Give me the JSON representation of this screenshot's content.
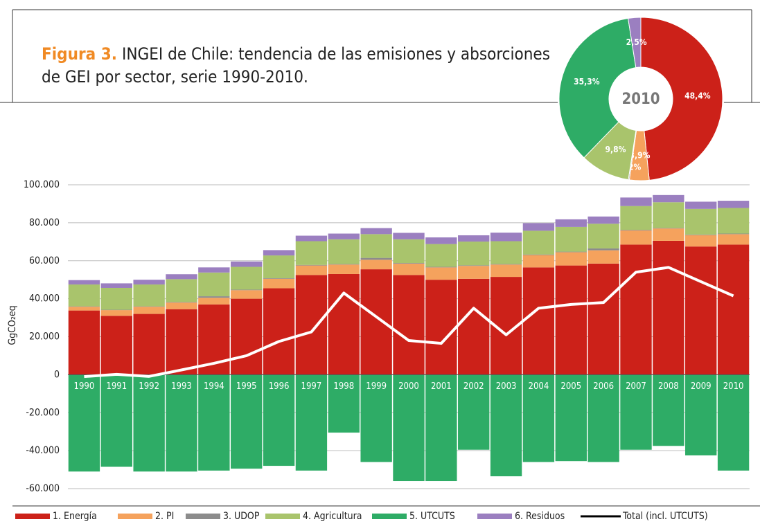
{
  "chart_data": [
    {
      "type": "bar",
      "title_label": "Figura 3.",
      "title_lines": [
        "INGEI de Chile: tendencia de las emisiones y absorciones",
        "de GEI por sector, serie 1990-2010."
      ],
      "y_label": "GgCO₂eq",
      "categories": [
        "1990",
        "1991",
        "1992",
        "1993",
        "1994",
        "1995",
        "1996",
        "1997",
        "1998",
        "1999",
        "2000",
        "2001",
        "2002",
        "2003",
        "2004",
        "2005",
        "2006",
        "2007",
        "2008",
        "2009",
        "2010"
      ],
      "series": [
        {
          "name": "1. Energía",
          "color": "#cc2119",
          "values": [
            33800,
            31000,
            32000,
            34500,
            37000,
            40000,
            45500,
            52500,
            53000,
            55500,
            52500,
            50000,
            50500,
            51500,
            56500,
            57500,
            58500,
            68500,
            70500,
            67500,
            68500
          ]
        },
        {
          "name": "2. PI",
          "color": "#f5a25d",
          "values": [
            2000,
            3000,
            3800,
            3500,
            3500,
            4500,
            5000,
            5000,
            5000,
            5000,
            6000,
            6500,
            6800,
            6500,
            6500,
            7000,
            7000,
            7500,
            6500,
            6000,
            5500
          ]
        },
        {
          "name": "3. UDOP",
          "color": "#8c8c8c",
          "values": [
            200,
            200,
            200,
            300,
            800,
            300,
            300,
            300,
            300,
            1000,
            300,
            300,
            300,
            300,
            300,
            300,
            1000,
            300,
            300,
            300,
            300
          ]
        },
        {
          "name": "4. Agricultura",
          "color": "#a9c46c",
          "values": [
            11500,
            11500,
            11500,
            12000,
            12500,
            12000,
            12000,
            12500,
            13000,
            12500,
            12500,
            12000,
            12500,
            12000,
            12500,
            13000,
            13000,
            12500,
            13500,
            13500,
            13500
          ]
        },
        {
          "name": "5. UTCUTS",
          "color": "#2eac66",
          "values": [
            -51000,
            -48500,
            -51000,
            -51000,
            -50500,
            -49500,
            -48000,
            -50500,
            -30500,
            -46000,
            -56000,
            -56000,
            -39500,
            -53500,
            -46000,
            -45500,
            -46000,
            -39500,
            -37500,
            -42500,
            -50500
          ]
        },
        {
          "name": "6. Residuos",
          "color": "#9b7fc0",
          "values": [
            2300,
            2400,
            2500,
            2600,
            2700,
            2800,
            2800,
            2900,
            3000,
            3200,
            3400,
            3500,
            3300,
            4500,
            4000,
            4000,
            3800,
            4500,
            3800,
            3800,
            3800
          ]
        },
        {
          "name": "Total (incl. UTCUTS)",
          "type": "line",
          "color": "#ffffff",
          "legend_color": "#000000",
          "values": [
            -1000,
            200,
            -900,
            2500,
            6000,
            10000,
            17500,
            22500,
            43000,
            30500,
            18000,
            16500,
            35000,
            21000,
            35000,
            37000,
            38000,
            54000,
            56500,
            49000,
            41500
          ]
        }
      ],
      "ylim": [
        -60000,
        100000
      ],
      "yticks": [
        {
          "value": -60000,
          "label": "-60.000"
        },
        {
          "value": -40000,
          "label": "-40.000"
        },
        {
          "value": -20000,
          "label": "-20.000"
        },
        0,
        {
          "value": 20000,
          "label": "20.000"
        },
        {
          "value": 40000,
          "label": "40.000"
        },
        {
          "value": 60000,
          "label": "60.000"
        },
        {
          "value": 80000,
          "label": "80.000"
        },
        {
          "value": 100000,
          "label": "100.000"
        }
      ],
      "grid": true,
      "legend": "bottom"
    },
    {
      "type": "pie",
      "center_label": "2010",
      "values": [
        48.4,
        3.9,
        0.2,
        9.8,
        35.3,
        2.5
      ],
      "value_labels": [
        "48,4%",
        "3,9%",
        "0,2%",
        "9,8%",
        "35,3%",
        "2,5%"
      ],
      "colors": [
        "#cc2119",
        "#f5a25d",
        "#8c8c8c",
        "#a9c46c",
        "#2eac66",
        "#9b7fc0"
      ]
    }
  ]
}
